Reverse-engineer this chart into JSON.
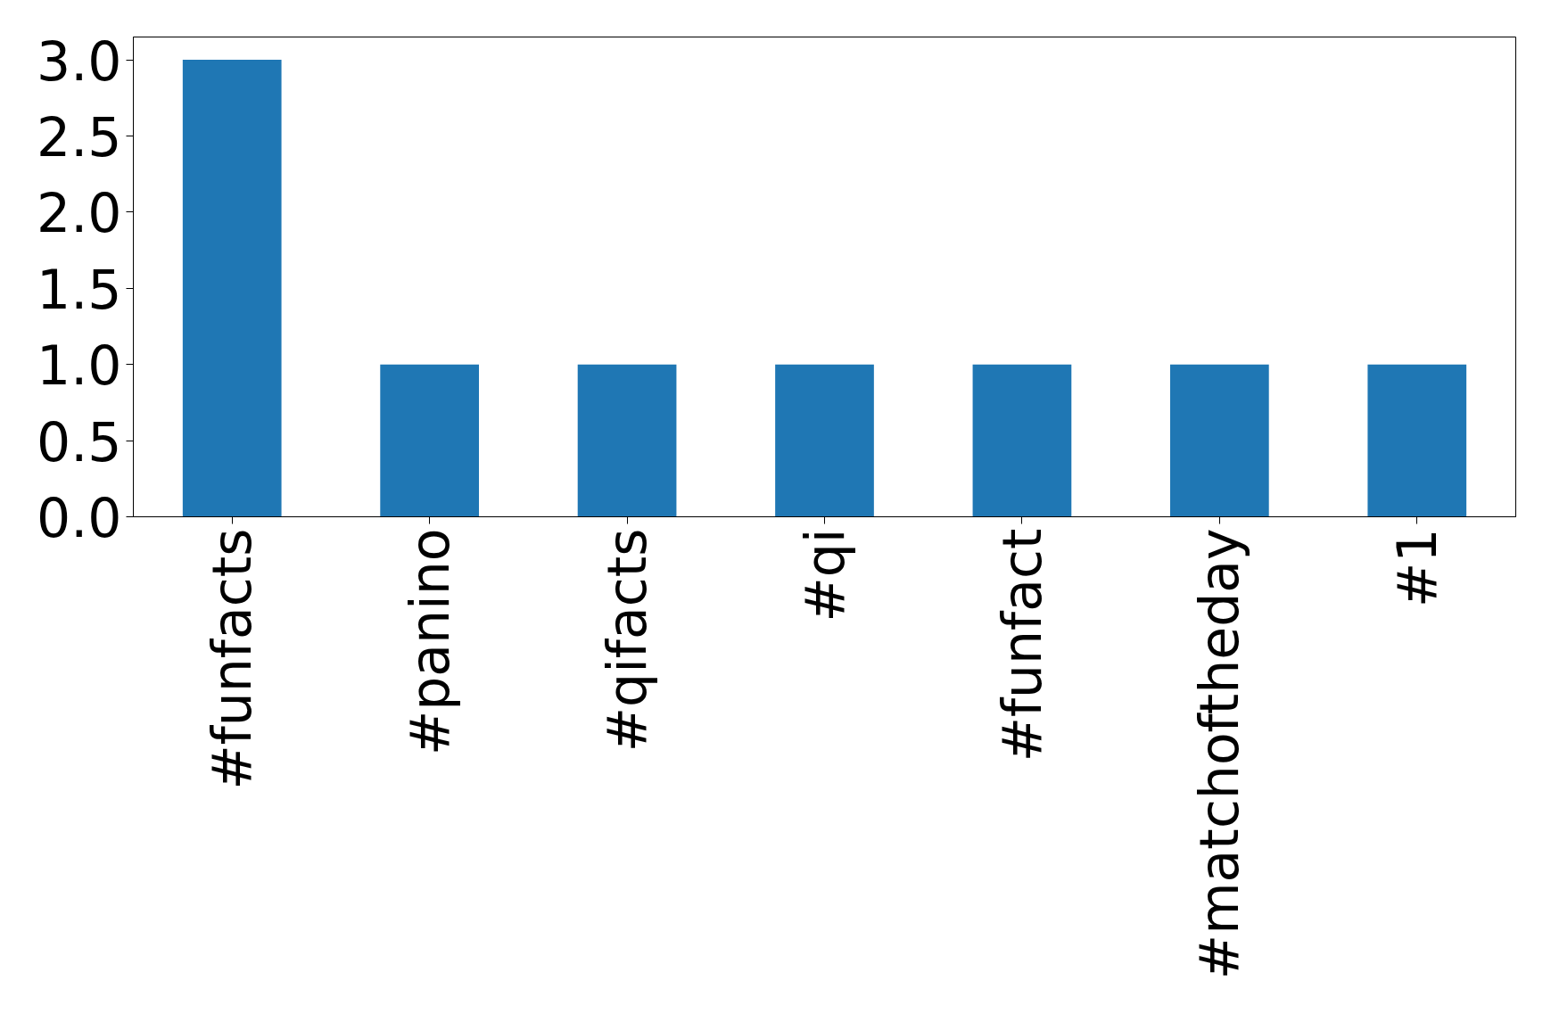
{
  "chart_data": {
    "type": "bar",
    "categories": [
      "#funfacts",
      "#panino",
      "#qifacts",
      "#qi",
      "#funfact",
      "#matchoftheday",
      "#1"
    ],
    "values": [
      3,
      1,
      1,
      1,
      1,
      1,
      1
    ],
    "color": "#1f77b4",
    "ylim": [
      0,
      3.15
    ],
    "yticks": [
      {
        "value": 0,
        "label": "0.0"
      },
      {
        "value": 0.5,
        "label": "0.5"
      },
      {
        "value": 1,
        "label": "1.0"
      },
      {
        "value": 1.5,
        "label": "1.5"
      },
      {
        "value": 2,
        "label": "2.0"
      },
      {
        "value": 2.5,
        "label": "2.5"
      },
      {
        "value": 3,
        "label": "3.0"
      }
    ],
    "grid": false
  }
}
